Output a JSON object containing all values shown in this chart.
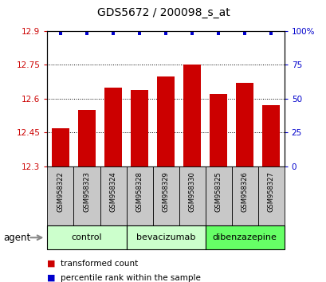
{
  "title": "GDS5672 / 200098_s_at",
  "samples": [
    "GSM958322",
    "GSM958323",
    "GSM958324",
    "GSM958328",
    "GSM958329",
    "GSM958330",
    "GSM958325",
    "GSM958326",
    "GSM958327"
  ],
  "bar_values": [
    12.47,
    12.55,
    12.65,
    12.64,
    12.7,
    12.75,
    12.62,
    12.67,
    12.57
  ],
  "percentile_values": [
    100,
    100,
    100,
    100,
    100,
    100,
    100,
    100,
    100
  ],
  "bar_color": "#cc0000",
  "dot_color": "#0000cc",
  "ylim_left": [
    12.3,
    12.9
  ],
  "ylim_right": [
    0,
    100
  ],
  "yticks_left": [
    12.3,
    12.45,
    12.6,
    12.75,
    12.9
  ],
  "yticks_right": [
    0,
    25,
    50,
    75,
    100
  ],
  "ytick_labels_left": [
    "12.3",
    "12.45",
    "12.6",
    "12.75",
    "12.9"
  ],
  "ytick_labels_right": [
    "0",
    "25",
    "50",
    "75",
    "100%"
  ],
  "groups": [
    {
      "label": "control",
      "start": 0,
      "end": 3,
      "color": "#ccffcc"
    },
    {
      "label": "bevacizumab",
      "start": 3,
      "end": 6,
      "color": "#ccffcc"
    },
    {
      "label": "dibenzazepine",
      "start": 6,
      "end": 9,
      "color": "#66ff66"
    }
  ],
  "agent_label": "agent",
  "legend_items": [
    {
      "color": "#cc0000",
      "label": "transformed count"
    },
    {
      "color": "#0000cc",
      "label": "percentile rank within the sample"
    }
  ],
  "tick_color_left": "#cc0000",
  "tick_color_right": "#0000cc",
  "bar_width": 0.65,
  "bar_bottom": 12.3,
  "sample_box_color": "#c8c8c8",
  "title_fontsize": 10,
  "tick_fontsize": 7.5
}
